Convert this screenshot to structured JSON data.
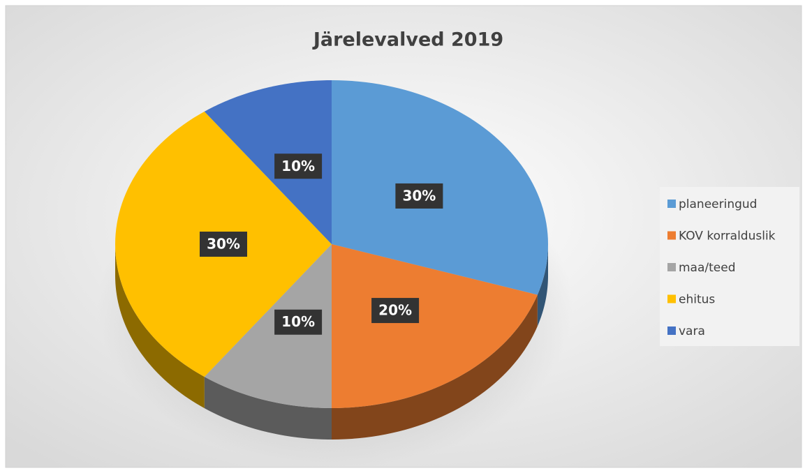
{
  "chart_data": {
    "type": "pie",
    "title": "Järelevalved 2019",
    "categories": [
      "planeeringud",
      "KOV korralduslik",
      "maa/teed",
      "ehitus",
      "vara"
    ],
    "values": [
      30,
      20,
      10,
      30,
      10
    ],
    "value_labels": [
      "30%",
      "20%",
      "10%",
      "30%",
      "10%"
    ],
    "colors": [
      "#5b9bd5",
      "#ed7d31",
      "#a5a5a5",
      "#ffc000",
      "#4472c4"
    ],
    "legend": "right"
  }
}
